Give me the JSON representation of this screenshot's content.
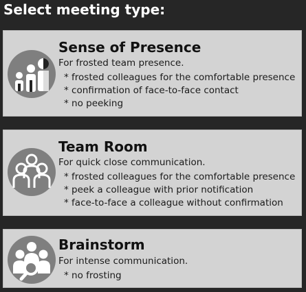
{
  "header": {
    "title": "Select meeting type:"
  },
  "options": [
    {
      "title": "Sense of Presence",
      "icon": "frosted-presence-icon",
      "description": "For frosted team presence.",
      "bullets": [
        "* frosted colleagues for the comfortable presence",
        "* confirmation of face-to-face contact",
        "* no peeking"
      ]
    },
    {
      "title": "Team Room",
      "icon": "team-group-icon",
      "description": "For quick close communication.",
      "bullets": [
        "* frosted colleagues for the comfortable presence",
        "* peek a colleague with prior notification",
        "* face-to-face a colleague without confirmation"
      ]
    },
    {
      "title": "Brainstorm",
      "icon": "group-search-icon",
      "description": "For intense communication.",
      "bullets": [
        "* no frosting"
      ]
    }
  ],
  "colors": {
    "background": "#262626",
    "card": "#d3d3d3",
    "icon_circle": "#7f7f7f",
    "icon_figure": "#ffffff"
  }
}
